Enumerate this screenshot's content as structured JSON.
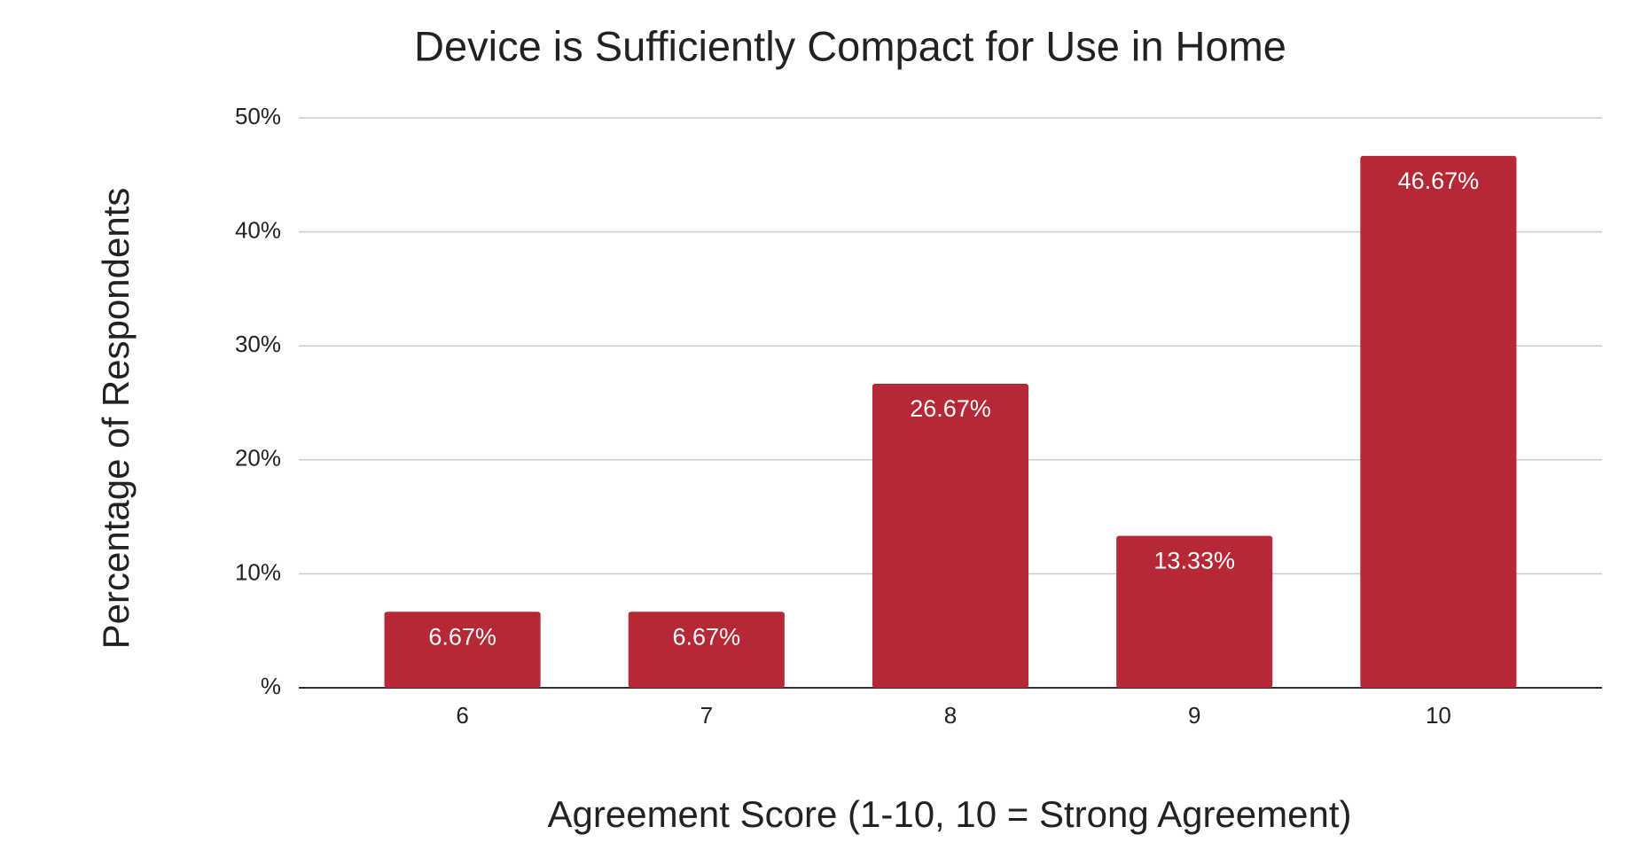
{
  "chart_data": {
    "type": "bar",
    "title": "Device is Sufficiently Compact for Use in Home",
    "x_label": "Agreement Score (1-10, 10 = Strong Agreement)",
    "y_label": "Percentage of Respondents",
    "categories": [
      "6",
      "7",
      "8",
      "9",
      "10"
    ],
    "values": [
      6.67,
      6.67,
      26.67,
      13.33,
      46.67
    ],
    "value_labels": [
      "6.67%",
      "6.67%",
      "26.67%",
      "13.33%",
      "46.67%"
    ],
    "color": "#b72837",
    "ylim": [
      0,
      50
    ],
    "yticks": [
      {
        "value": 0,
        "label": "%"
      },
      {
        "value": 10,
        "label": "10%"
      },
      {
        "value": 20,
        "label": "20%"
      },
      {
        "value": 30,
        "label": "30%"
      },
      {
        "value": 40,
        "label": "40%"
      },
      {
        "value": 50,
        "label": "50%"
      }
    ],
    "grid": true
  }
}
